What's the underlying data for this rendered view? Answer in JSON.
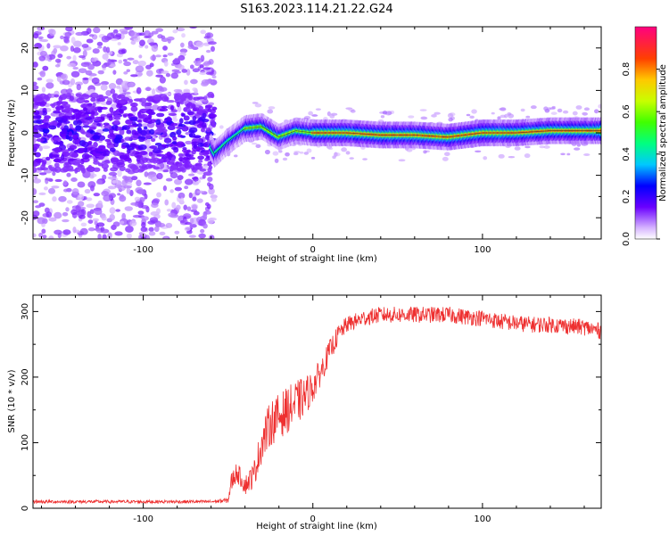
{
  "figure_title": "S163.2023.114.21.22.G24",
  "chart_data": [
    {
      "type": "heatmap",
      "xlabel": "Height of straight line (km)",
      "ylabel": "Frequency (Hz)",
      "xlim": [
        -165,
        170
      ],
      "ylim": [
        -25,
        25
      ],
      "xticks": [
        -100,
        0,
        100
      ],
      "yticks": [
        -20,
        -10,
        0,
        10,
        20
      ],
      "colorbar": {
        "label": "Normalized spectral amplitude",
        "range": [
          0,
          1
        ],
        "ticks": [
          "0.0",
          "0.2",
          "0.4",
          "0.6",
          "0.8"
        ]
      },
      "ridge": {
        "description_points_height_km": [
          -165,
          -140,
          -120,
          -100,
          -80,
          -65,
          -58,
          -50,
          -40,
          -30,
          -20,
          -10,
          0,
          20,
          40,
          60,
          80,
          100,
          120,
          140,
          170
        ],
        "frequency_hz": [
          1,
          1.5,
          1,
          1,
          1,
          0.5,
          -5,
          -2,
          1,
          1.5,
          -1,
          0.5,
          0,
          0,
          -0.5,
          -0.5,
          -1,
          0,
          0,
          0.5,
          0.5
        ]
      }
    },
    {
      "type": "line",
      "xlabel": "Height of straight line (km)",
      "ylabel": "SNR (10 * v/v)",
      "xlim": [
        -165,
        170
      ],
      "ylim": [
        0,
        325
      ],
      "xticks": [
        -100,
        0,
        100
      ],
      "yticks": [
        0,
        100,
        200,
        300
      ],
      "series": [
        {
          "color": "#ee3030",
          "x": [
            -165,
            -120,
            -80,
            -60,
            -50,
            -48,
            -45,
            -42,
            -40,
            -35,
            -30,
            -25,
            -20,
            -15,
            -10,
            -5,
            0,
            5,
            10,
            15,
            20,
            25,
            30,
            40,
            50,
            60,
            70,
            80,
            90,
            100,
            110,
            120,
            130,
            140,
            150,
            160,
            170
          ],
          "mean": [
            10,
            10,
            10,
            10,
            12,
            40,
            55,
            45,
            35,
            50,
            100,
            130,
            140,
            150,
            160,
            170,
            185,
            210,
            240,
            265,
            280,
            285,
            290,
            295,
            295,
            295,
            295,
            295,
            292,
            290,
            285,
            282,
            280,
            280,
            278,
            276,
            270
          ],
          "spread": [
            5,
            5,
            5,
            5,
            8,
            30,
            30,
            30,
            30,
            40,
            60,
            70,
            70,
            70,
            70,
            60,
            50,
            40,
            35,
            30,
            25,
            25,
            25,
            25,
            25,
            25,
            25,
            25,
            25,
            25,
            25,
            25,
            25,
            25,
            25,
            25,
            25
          ]
        }
      ]
    }
  ]
}
